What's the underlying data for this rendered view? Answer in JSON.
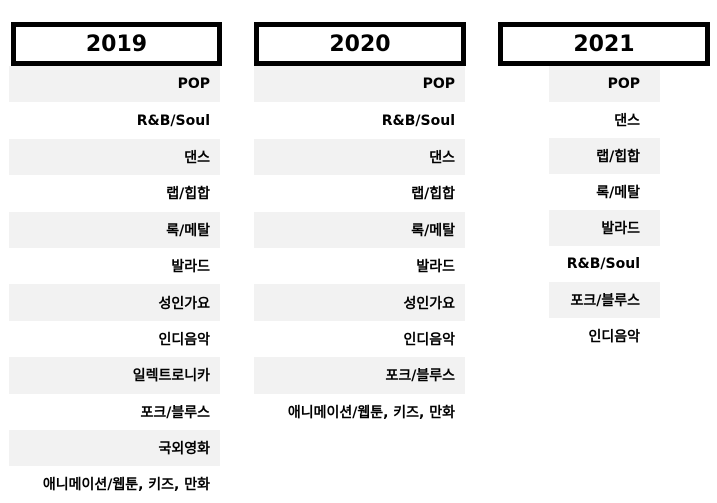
{
  "columns": [
    {
      "year": "2019",
      "genres": [
        "POP",
        "R&B/Soul",
        "댄스",
        "랩/힙합",
        "록/메탈",
        "발라드",
        "성인가요",
        "인디음악",
        "일렉트로니카",
        "포크/블루스",
        "국외영화",
        "애니메이션/웹툰, 키즈, 만화"
      ]
    },
    {
      "year": "2020",
      "genres": [
        "POP",
        "R&B/Soul",
        "댄스",
        "랩/힙합",
        "록/메탈",
        "발라드",
        "성인가요",
        "인디음악",
        "포크/블루스",
        "애니메이션/웹툰, 키즈, 만화"
      ]
    },
    {
      "year": "2021",
      "genres": [
        "POP",
        "댄스",
        "랩/힙합",
        "록/메탈",
        "발라드",
        "R&B/Soul",
        "포크/블루스",
        "인디음악"
      ]
    }
  ],
  "colors": {
    "row_shade": "#f2f2f2",
    "border": "#000000"
  }
}
